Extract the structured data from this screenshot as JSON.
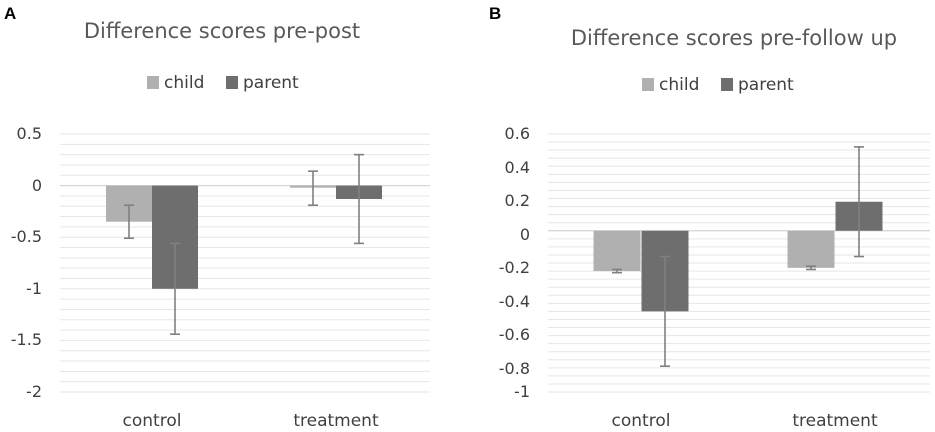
{
  "colors": {
    "child": "#b0b0b0",
    "parent": "#6e6e6e",
    "error_bar": "#808080",
    "grid": "#e6e6e6",
    "text": "#404040",
    "title": "#595959"
  },
  "chart_data": [
    {
      "panel_label": "A",
      "type": "bar",
      "title": "Difference scores pre-post",
      "categories": [
        "control",
        "treatment"
      ],
      "series": [
        {
          "name": "child",
          "values": [
            -0.35,
            -0.02
          ],
          "error_low": [
            -0.51,
            -0.19
          ],
          "error_high": [
            -0.19,
            0.14
          ]
        },
        {
          "name": "parent",
          "values": [
            -1.0,
            -0.13
          ],
          "error_low": [
            -1.44,
            -0.56
          ],
          "error_high": [
            -0.56,
            0.3
          ]
        }
      ],
      "ylim": [
        -2,
        0.5
      ],
      "ytick_values": [
        0.5,
        0,
        -0.5,
        -1,
        -1.5,
        -2
      ],
      "ytick_labels": [
        "0.5",
        "0",
        "-0.5",
        "-1",
        "-1.5",
        "-2"
      ],
      "minor_grid_step": 0.1,
      "legend": "top"
    },
    {
      "panel_label": "B",
      "type": "bar",
      "title": "Difference scores pre-follow up",
      "categories": [
        "control",
        "treatment"
      ],
      "series": [
        {
          "name": "child",
          "values": [
            -0.25,
            -0.23
          ],
          "error_low": [
            -0.26,
            -0.24
          ],
          "error_high": [
            -0.24,
            -0.22
          ]
        },
        {
          "name": "parent",
          "values": [
            -0.5,
            0.18
          ],
          "error_low": [
            -0.84,
            -0.16
          ],
          "error_high": [
            -0.16,
            0.52
          ]
        }
      ],
      "ylim": [
        -1,
        0.6
      ],
      "ytick_values": [
        0.6,
        0.4,
        0.2,
        0,
        -0.2,
        -0.4,
        -0.6,
        -0.8,
        -1
      ],
      "ytick_labels": [
        "0.6",
        "0.4",
        "0.2",
        "0",
        "-0.2",
        "-0.4",
        "-0.6",
        "-0.8",
        "-1"
      ],
      "minor_grid_step": 0.05,
      "legend": "top"
    }
  ]
}
